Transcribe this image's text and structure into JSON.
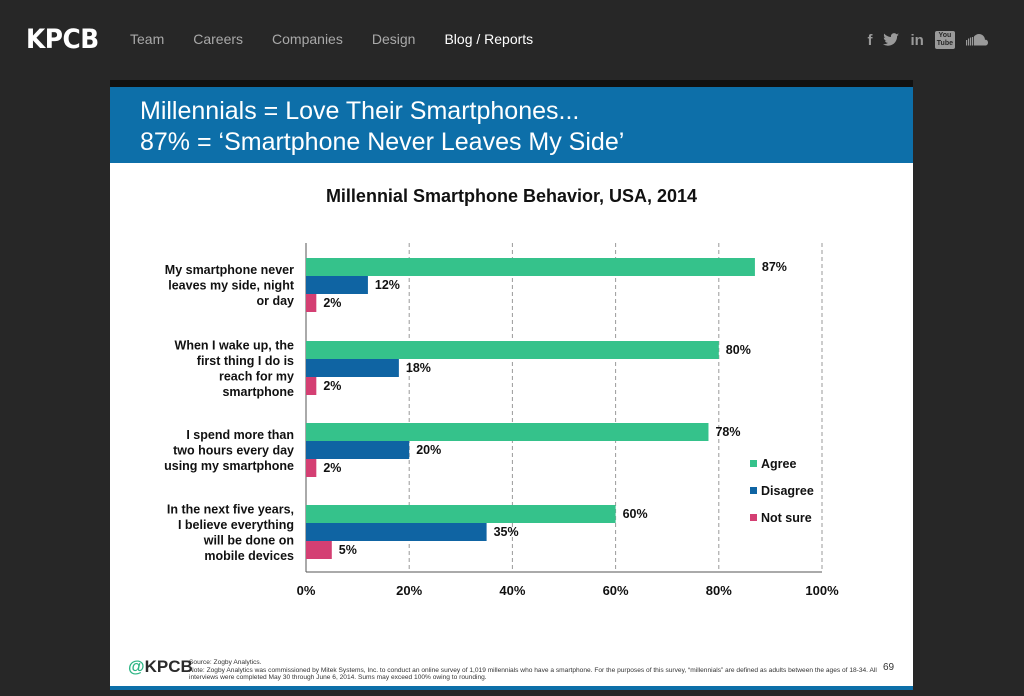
{
  "nav": {
    "logo": "KPCB",
    "links": [
      "Team",
      "Careers",
      "Companies",
      "Design",
      "Blog / Reports"
    ],
    "active_index": 4,
    "social_icons": [
      "facebook-icon",
      "twitter-icon",
      "linkedin-icon",
      "youtube-icon",
      "soundcloud-icon"
    ],
    "social_glyphs": {
      "facebook": "f",
      "linkedin": "in",
      "youtube_top": "You",
      "youtube_bottom": "Tube"
    }
  },
  "slide": {
    "title_line1": "Millennials = Love Their Smartphones...",
    "title_line2": "87% = ‘Smartphone Never Leaves My Side’",
    "footer_logo_at": "@",
    "footer_logo_name": "KPCB",
    "source": "Source: Zogby Analytics.",
    "note": "Note: Zogby Analytics was commissioned by Mitek Systems, Inc. to conduct an online survey of 1,019 millennials who have a smartphone. For the purposes of this survey, “millennials” are defined as adults between the ages of 18-34. All interviews were completed May 30 through June 6, 2014. Sums may exceed 100% owing to rounding.",
    "page_number": "69"
  },
  "colors": {
    "header_blue": "#0d6fa9",
    "agree": "#35c28b",
    "disagree": "#0f64a3",
    "not_sure": "#d43f73"
  },
  "chart_data": {
    "type": "bar",
    "orientation": "horizontal",
    "title": "Millennial Smartphone Behavior, USA, 2014",
    "categories": [
      [
        "My smartphone never",
        "leaves my side, night",
        "or day"
      ],
      [
        "When I wake up, the",
        "first thing I do is",
        "reach for my",
        "smartphone"
      ],
      [
        "I spend more than",
        "two hours every day",
        "using my smartphone"
      ],
      [
        "In the next five years,",
        "I believe everything",
        "will be done on",
        "mobile devices"
      ]
    ],
    "series": [
      {
        "name": "Agree",
        "values": [
          87,
          80,
          78,
          60
        ]
      },
      {
        "name": "Disagree",
        "values": [
          12,
          18,
          20,
          35
        ]
      },
      {
        "name": "Not sure",
        "values": [
          2,
          2,
          2,
          5
        ]
      }
    ],
    "value_suffix": "%",
    "xlim": [
      0,
      100
    ],
    "x_ticks": [
      "0%",
      "20%",
      "40%",
      "60%",
      "80%",
      "100%"
    ],
    "grid": "vertical dashed",
    "legend_position": "right"
  }
}
